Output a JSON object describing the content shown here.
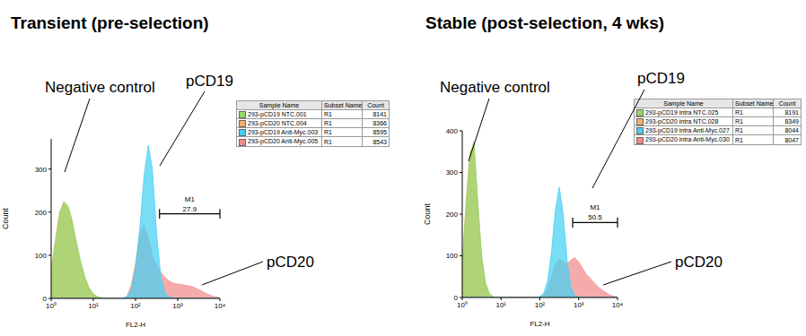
{
  "chart_data": [
    {
      "type": "area",
      "title": "Transient (pre-selection)",
      "x_label": "FL2-H",
      "y_label": "Count",
      "log": "x",
      "grid": false,
      "xlim": [
        1,
        10000
      ],
      "xticks": [
        {
          "value": 1,
          "label": "10⁰"
        },
        {
          "value": 10,
          "label": "10¹"
        },
        {
          "value": 100,
          "label": "10²"
        },
        {
          "value": 1000,
          "label": "10³"
        },
        {
          "value": 10000,
          "label": "10⁴"
        }
      ],
      "ylim": [
        0,
        370
      ],
      "yticks": [
        0,
        100,
        200,
        300
      ],
      "x": [
        1,
        1.26,
        1.58,
        2,
        2.51,
        3.16,
        3.98,
        5.01,
        6.31,
        7.94,
        10,
        12.6,
        15.8,
        20,
        25.1,
        31.6,
        39.8,
        50.1,
        63.1,
        79.4,
        100,
        126,
        158,
        200,
        251,
        316,
        398,
        501,
        631,
        794,
        1000,
        1259,
        1585,
        1995,
        2512,
        3162,
        3981,
        5012,
        6310,
        7943,
        10000
      ],
      "legend_columns": [
        "Sample Name",
        "Subset Name",
        "Count"
      ],
      "series": [
        {
          "name": "293-pCD19 NTC.001",
          "subset": "R1",
          "count": 8141,
          "color": "#93d86a",
          "values": [
            60,
            130,
            195,
            225,
            215,
            180,
            130,
            85,
            50,
            25,
            10,
            4,
            1,
            0,
            0,
            0,
            0,
            0,
            0,
            0,
            0,
            0,
            0,
            0,
            0,
            0,
            0,
            0,
            0,
            0,
            0,
            0,
            0,
            0,
            0,
            0,
            0,
            0,
            0,
            0,
            0
          ]
        },
        {
          "name": "293-pCD20 NTC.004",
          "subset": "R1",
          "count": 8366,
          "color": "#f5ae6e",
          "values": [
            65,
            135,
            200,
            222,
            210,
            175,
            125,
            80,
            45,
            22,
            9,
            3,
            1,
            0,
            0,
            0,
            0,
            0,
            0,
            0,
            0,
            0,
            0,
            0,
            0,
            0,
            0,
            0,
            0,
            0,
            0,
            0,
            0,
            0,
            0,
            0,
            0,
            0,
            0,
            0,
            0
          ]
        },
        {
          "name": "293-pCD19 Anti-Myc.003",
          "subset": "R1",
          "count": 8595,
          "color": "#45d0f2",
          "values": [
            0,
            0,
            0,
            0,
            0,
            0,
            0,
            0,
            0,
            0,
            0,
            0,
            0,
            0,
            0,
            0,
            0,
            0,
            5,
            20,
            70,
            160,
            280,
            355,
            300,
            150,
            50,
            12,
            3,
            1,
            0,
            0,
            0,
            0,
            0,
            0,
            0,
            0,
            0,
            0,
            0
          ]
        },
        {
          "name": "293-pCD20 Anti-Myc.005",
          "subset": "R1",
          "count": 8543,
          "color": "#f28a8a",
          "values": [
            0,
            0,
            0,
            0,
            0,
            0,
            0,
            0,
            0,
            0,
            0,
            0,
            0,
            0,
            0,
            0,
            0,
            0,
            5,
            30,
            80,
            150,
            170,
            140,
            100,
            75,
            60,
            48,
            40,
            35,
            33,
            32,
            30,
            28,
            25,
            20,
            15,
            10,
            6,
            3,
            1
          ]
        }
      ],
      "annotations": [
        "Negative control",
        "pCD19",
        "pCD20"
      ],
      "gate": {
        "label": "M1",
        "start": 370,
        "end": 10000,
        "value": 27.9
      }
    },
    {
      "type": "area",
      "title": "Stable (post-selection, 4 wks)",
      "x_label": "FL2-H",
      "y_label": "Count",
      "log": "x",
      "grid": false,
      "xlim": [
        1,
        10000
      ],
      "xticks": [
        {
          "value": 1,
          "label": "10⁰"
        },
        {
          "value": 10,
          "label": "10¹"
        },
        {
          "value": 100,
          "label": "10²"
        },
        {
          "value": 1000,
          "label": "10³"
        },
        {
          "value": 10000,
          "label": "10⁴"
        }
      ],
      "ylim": [
        0,
        400
      ],
      "yticks": [
        0,
        100,
        200,
        300,
        400
      ],
      "x": [
        1,
        1.26,
        1.58,
        2,
        2.51,
        3.16,
        3.98,
        5.01,
        6.31,
        7.94,
        10,
        12.6,
        15.8,
        20,
        25.1,
        31.6,
        39.8,
        50.1,
        63.1,
        79.4,
        100,
        126,
        158,
        200,
        251,
        316,
        398,
        501,
        631,
        794,
        1000,
        1259,
        1585,
        1995,
        2512,
        3162,
        3981,
        5012,
        6310,
        7943,
        10000
      ],
      "legend_columns": [
        "Sample Name",
        "Subset Name",
        "Count"
      ],
      "series": [
        {
          "name": "293-pCD19 intra NTC.025",
          "subset": "R1",
          "count": 8191,
          "color": "#93d86a",
          "values": [
            80,
            220,
            340,
            375,
            230,
            100,
            35,
            10,
            2,
            0,
            0,
            0,
            0,
            0,
            0,
            0,
            0,
            0,
            0,
            0,
            0,
            0,
            0,
            0,
            0,
            0,
            0,
            0,
            0,
            0,
            0,
            0,
            0,
            0,
            0,
            0,
            0,
            0,
            0,
            0,
            0
          ]
        },
        {
          "name": "293-pCD20 intra NTC.028",
          "subset": "R1",
          "count": 8349,
          "color": "#f5ae6e",
          "values": [
            85,
            230,
            350,
            365,
            220,
            95,
            30,
            8,
            2,
            0,
            0,
            0,
            0,
            0,
            0,
            0,
            0,
            0,
            0,
            0,
            0,
            0,
            0,
            0,
            0,
            0,
            0,
            0,
            0,
            0,
            0,
            0,
            0,
            0,
            0,
            0,
            0,
            0,
            0,
            0,
            0
          ]
        },
        {
          "name": "293-pCD19 intra Anti-Myc.027",
          "subset": "R1",
          "count": 8044,
          "color": "#45d0f2",
          "values": [
            0,
            0,
            0,
            0,
            0,
            0,
            0,
            0,
            0,
            0,
            0,
            0,
            0,
            0,
            0,
            0,
            0,
            0,
            0,
            0,
            2,
            10,
            40,
            110,
            210,
            265,
            200,
            90,
            25,
            5,
            1,
            0,
            0,
            0,
            0,
            0,
            0,
            0,
            0,
            0,
            0
          ]
        },
        {
          "name": "293-pCD20 intra Anti-Myc.030",
          "subset": "R1",
          "count": 8047,
          "color": "#f28a8a",
          "values": [
            0,
            0,
            0,
            0,
            0,
            0,
            0,
            0,
            0,
            0,
            0,
            0,
            0,
            0,
            0,
            0,
            0,
            0,
            0,
            0,
            0,
            5,
            20,
            50,
            80,
            90,
            85,
            80,
            90,
            95,
            85,
            70,
            55,
            45,
            35,
            25,
            18,
            12,
            6,
            3,
            1
          ]
        }
      ],
      "annotations": [
        "Negative control",
        "pCD19",
        "pCD20"
      ],
      "gate": {
        "label": "M1",
        "start": 700,
        "end": 10000,
        "value": 50.5
      }
    }
  ]
}
